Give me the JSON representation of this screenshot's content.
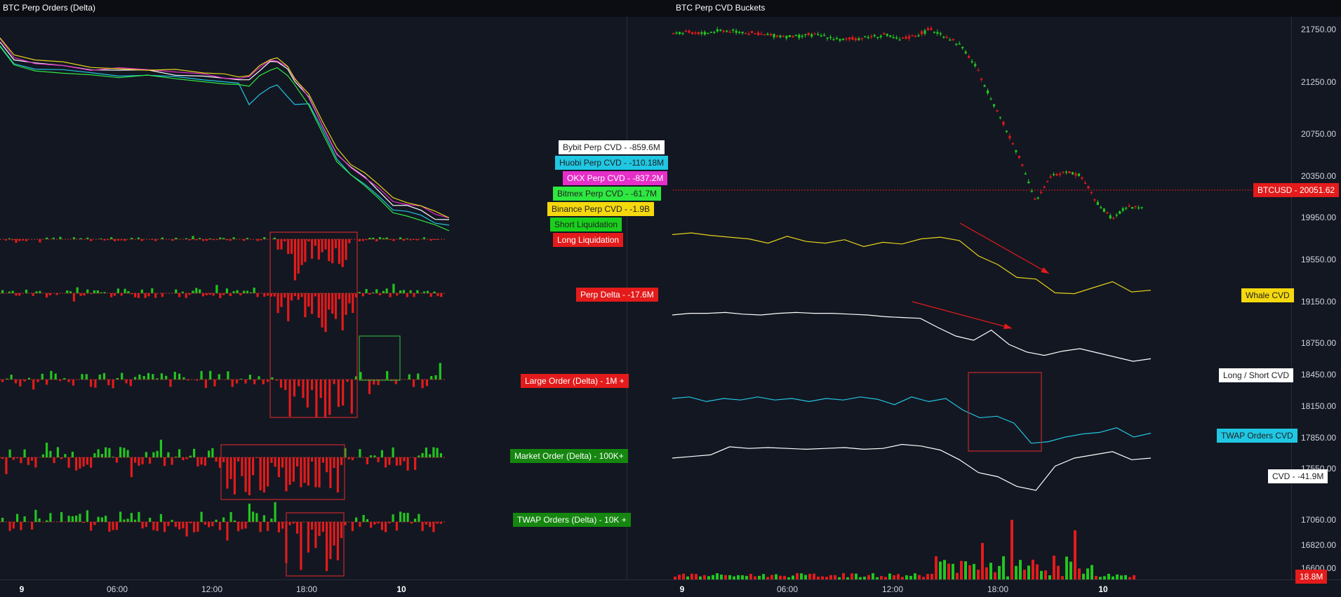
{
  "left_panel": {
    "title": "BTC Perp Orders (Delta)"
  },
  "right_panel": {
    "title": "BTC Perp CVD Buckets"
  },
  "colors": {
    "background": "#131722",
    "bybit": "#ffffff",
    "huobi": "#22c5e0",
    "okx": "#e62ec8",
    "bitmex": "#2ee840",
    "binance": "#e5d21c",
    "green": "#22c51f",
    "red": "#e31b1b"
  },
  "legend": [
    {
      "label": "Bybit Perp CVD  -  -859.6M",
      "color": "#ffffff",
      "text": "#222222"
    },
    {
      "label": "Huobi Perp CVD  -  -110.18M",
      "color": "#20c7e3",
      "text": "#222222"
    },
    {
      "label": "OKX Perp CVD  -  -837.2M",
      "color": "#e62ec8",
      "text": "#ffffff"
    },
    {
      "label": "Bitmex Perp CVD  -  -61.7M",
      "color": "#2ee840",
      "text": "#222222"
    },
    {
      "label": "Binance Perp CVD  -  -1.9B",
      "color": "#f5d80e",
      "text": "#222222"
    },
    {
      "label": "Short Liquidation",
      "color": "#19cf1c",
      "text": "#222222"
    },
    {
      "label": "Long Liquidation",
      "color": "#e31b1b",
      "text": "#ffffff"
    }
  ],
  "row_labels": [
    {
      "label": "Perp Delta  -  -17.6M",
      "color": "#e31b1b",
      "text": "#ffffff"
    },
    {
      "label": "Large Order (Delta) - 1M +",
      "color": "#e31b1b",
      "text": "#ffffff"
    },
    {
      "label": "Market Order (Delta) - 100K+",
      "color": "#15860f",
      "text": "#ffffff"
    },
    {
      "label": "TWAP Orders (Delta) - 10K +",
      "color": "#15860f",
      "text": "#ffffff"
    }
  ],
  "right_labels": [
    {
      "label": "BTCUSD  -  20051.62",
      "color": "#e31b1b",
      "text": "#ffffff"
    },
    {
      "label": "Whale CVD",
      "color": "#f5d80e",
      "text": "#222222"
    },
    {
      "label": "Long / Short CVD",
      "color": "#ffffff",
      "text": "#222222"
    },
    {
      "label": "TWAP Orders CVD",
      "color": "#20c7e3",
      "text": "#222222"
    },
    {
      "label": "CVD  -  -41.9M",
      "color": "#ffffff",
      "text": "#222222"
    },
    {
      "label": "18.8M",
      "color": "#e31b1b",
      "text": "#ffffff"
    }
  ],
  "x_axis": [
    {
      "label": "9",
      "bold": true
    },
    {
      "label": "06:00",
      "bold": false
    },
    {
      "label": "12:00",
      "bold": false
    },
    {
      "label": "18:00",
      "bold": false
    },
    {
      "label": "10",
      "bold": true
    }
  ],
  "chart_data": {
    "type": "line",
    "y_axis_ticks": [
      "21750.00",
      "21250.00",
      "20750.00",
      "20350.00",
      "19950.00",
      "19550.00",
      "19150.00",
      "18750.00",
      "18450.00",
      "18150.00",
      "17850.00",
      "17550.00",
      "17060.00",
      "16820.00",
      "16600.00"
    ],
    "series": [
      {
        "name": "BTCUSD",
        "values": [
          21715,
          21720,
          21710,
          21740,
          21735,
          21720,
          21700,
          21690,
          21680,
          21700,
          21690,
          21650,
          21660,
          21680,
          21700,
          21650,
          21690,
          21750,
          21690,
          21600,
          21400,
          21100,
          20800,
          20500,
          20100,
          20350,
          20400,
          20350,
          20100,
          19950,
          20050,
          20051.62
        ]
      },
      {
        "name": "Whale CVD",
        "values": [
          0.8,
          0.82,
          0.79,
          0.77,
          0.75,
          0.7,
          0.78,
          0.72,
          0.7,
          0.74,
          0.66,
          0.71,
          0.69,
          0.75,
          0.77,
          0.73,
          0.55,
          0.45,
          0.3,
          0.28,
          0.12,
          0.11,
          0.18,
          0.25,
          0.13,
          0.15
        ]
      },
      {
        "name": "Long / Short CVD",
        "values": [
          0.8,
          0.82,
          0.82,
          0.83,
          0.81,
          0.8,
          0.82,
          0.83,
          0.82,
          0.82,
          0.81,
          0.8,
          0.78,
          0.77,
          0.76,
          0.65,
          0.55,
          0.5,
          0.62,
          0.45,
          0.36,
          0.32,
          0.37,
          0.4,
          0.35,
          0.3,
          0.25,
          0.28
        ]
      },
      {
        "name": "TWAP Orders CVD",
        "values": [
          0.7,
          0.72,
          0.66,
          0.7,
          0.68,
          0.72,
          0.68,
          0.7,
          0.66,
          0.7,
          0.68,
          0.72,
          0.69,
          0.62,
          0.72,
          0.66,
          0.7,
          0.55,
          0.45,
          0.47,
          0.38,
          0.12,
          0.14,
          0.2,
          0.24,
          0.26,
          0.32,
          0.2,
          0.25
        ]
      },
      {
        "name": "CVD",
        "values": [
          0.8,
          0.82,
          0.84,
          0.94,
          0.92,
          0.93,
          0.92,
          0.91,
          0.92,
          0.93,
          0.91,
          0.92,
          0.97,
          0.95,
          0.9,
          0.78,
          0.62,
          0.57,
          0.45,
          0.4,
          0.7,
          0.8,
          0.84,
          0.88,
          0.78,
          0.8
        ]
      }
    ]
  }
}
